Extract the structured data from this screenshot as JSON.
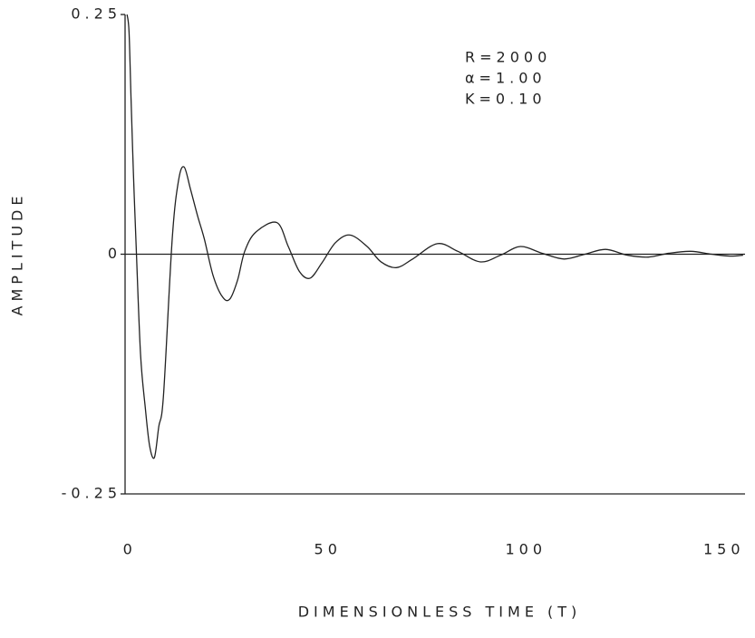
{
  "chart_data": {
    "type": "line",
    "xlabel": "DIMENSIONLESS TIME (T)",
    "ylabel": "AMPLITUDE",
    "annotations": [
      "R=2000",
      "α=1.00",
      "K=0.10"
    ],
    "xlim": [
      -0.5,
      156
    ],
    "xticks": [
      0,
      50,
      100,
      150
    ],
    "ylim": [
      -0.25,
      0.25
    ],
    "yticks": [
      0.25,
      0,
      -0.25
    ],
    "zero_line": true,
    "series": [
      {
        "color": "#222222",
        "x": [
          0,
          0.5,
          1,
          1.6,
          2.3,
          3.4,
          4.6,
          5.7,
          6.9,
          8,
          9.2,
          11.4,
          13,
          14.4,
          16,
          17.8,
          19.5,
          21.7,
          24,
          25.9,
          27.9,
          29.7,
          32.5,
          37.8,
          40.7,
          43.5,
          46.2,
          49.2,
          52.6,
          56.3,
          60.6,
          64.1,
          68,
          72.1,
          78.3,
          83.5,
          89.2,
          94.3,
          99.3,
          104.8,
          110.3,
          115.6,
          120.8,
          126.3,
          131.6,
          136.8,
          142.3,
          147.6,
          152.2,
          155.5
        ],
        "values": [
          0.25,
          0.232,
          0.163,
          0.085,
          0.008,
          -0.104,
          -0.16,
          -0.2,
          -0.212,
          -0.18,
          -0.147,
          0.016,
          0.077,
          0.091,
          0.068,
          0.04,
          0.016,
          -0.022,
          -0.044,
          -0.047,
          -0.027,
          0.003,
          0.023,
          0.033,
          0.008,
          -0.018,
          -0.025,
          -0.009,
          0.012,
          0.02,
          0.008,
          -0.008,
          -0.014,
          -0.005,
          0.011,
          0.003,
          -0.008,
          -0.001,
          0.008,
          0.001,
          -0.005,
          0,
          0.005,
          -0.001,
          -0.003,
          0.001,
          0.003,
          0,
          -0.002,
          -0.001
        ]
      }
    ]
  }
}
